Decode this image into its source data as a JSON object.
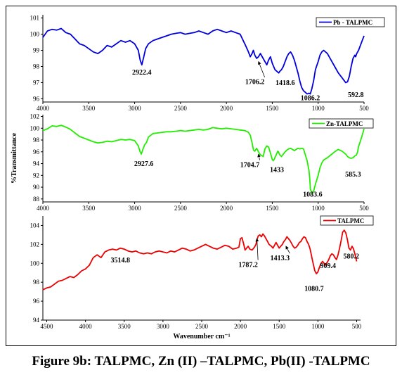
{
  "caption": "Figure 9b: TALPMC, Zn (II) –TALPMC, Pb(II) -TALPMC",
  "chart_data": [
    {
      "type": "line",
      "ylabel": "",
      "xlabel": "",
      "xlim": [
        4000,
        500
      ],
      "ylim": [
        95.8,
        101.2
      ],
      "xticks": [
        "4000",
        "3500",
        "3000",
        "2500",
        "2000",
        "1500",
        "1000",
        "500"
      ],
      "yticks": [
        "101",
        "100",
        "99",
        "98",
        "97",
        "96"
      ],
      "xticks_v": [
        4000,
        3500,
        3000,
        2500,
        2000,
        1500,
        1000,
        500
      ],
      "yticks_v": [
        101,
        100,
        99,
        98,
        97,
        96
      ],
      "legend": "top-right",
      "color": "#0000dd",
      "series": [
        {
          "name": "Pb - TALPMC",
          "x": [
            4000,
            3950,
            3900,
            3850,
            3800,
            3750,
            3700,
            3650,
            3600,
            3550,
            3500,
            3450,
            3400,
            3350,
            3300,
            3250,
            3200,
            3150,
            3100,
            3050,
            3000,
            2960,
            2940,
            2922,
            2900,
            2880,
            2850,
            2800,
            2750,
            2700,
            2650,
            2600,
            2550,
            2500,
            2450,
            2400,
            2350,
            2300,
            2250,
            2200,
            2150,
            2100,
            2050,
            2000,
            1950,
            1900,
            1850,
            1800,
            1760,
            1740,
            1720,
            1706,
            1690,
            1670,
            1650,
            1630,
            1600,
            1580,
            1560,
            1540,
            1520,
            1500,
            1470,
            1450,
            1430,
            1418,
            1400,
            1380,
            1360,
            1340,
            1320,
            1300,
            1280,
            1260,
            1240,
            1220,
            1200,
            1180,
            1160,
            1140,
            1120,
            1100,
            1086,
            1070,
            1050,
            1030,
            1000,
            980,
            960,
            940,
            900,
            860,
            820,
            780,
            740,
            700,
            680,
            660,
            640,
            620,
            600,
            592,
            580,
            560,
            540,
            520,
            500
          ],
          "y": [
            99.8,
            100.2,
            100.3,
            100.25,
            100.35,
            100.1,
            100.0,
            99.7,
            99.4,
            99.3,
            99.1,
            98.9,
            98.8,
            99.0,
            99.3,
            99.2,
            99.4,
            99.6,
            99.5,
            99.6,
            99.4,
            99.0,
            98.4,
            98.1,
            98.6,
            99.1,
            99.4,
            99.6,
            99.7,
            99.8,
            99.9,
            100.0,
            100.05,
            100.1,
            100.0,
            100.05,
            100.1,
            100.2,
            100.1,
            100.0,
            100.2,
            100.3,
            100.2,
            100.1,
            100.2,
            100.1,
            100.0,
            99.4,
            98.9,
            98.6,
            98.8,
            99.0,
            98.7,
            98.5,
            98.6,
            98.8,
            98.5,
            98.3,
            98.1,
            98.4,
            98.6,
            98.2,
            97.8,
            97.7,
            97.6,
            97.7,
            97.8,
            98.0,
            98.3,
            98.6,
            98.8,
            98.9,
            98.7,
            98.4,
            98.0,
            97.6,
            97.1,
            96.7,
            96.5,
            96.4,
            96.3,
            96.35,
            96.3,
            96.6,
            97.1,
            97.8,
            98.3,
            98.7,
            98.9,
            99.0,
            98.8,
            98.4,
            98.0,
            97.6,
            97.3,
            97.0,
            97.05,
            97.4,
            98.0,
            98.5,
            98.7,
            98.6,
            98.8,
            99.0,
            99.3,
            99.6,
            99.9
          ]
        }
      ],
      "annotations": [
        {
          "text": "2922.4",
          "x": 2922,
          "y": 97.5
        },
        {
          "text": "1706.2",
          "x": 1690,
          "y": 96.9,
          "arrow_to": [
            1650,
            98.3
          ],
          "arrow": true
        },
        {
          "text": "1418.6",
          "x": 1360,
          "y": 96.85
        },
        {
          "text": "1086.2",
          "x": 1086,
          "y": 95.9
        },
        {
          "text": "592.8",
          "x": 590,
          "y": 96.1
        }
      ]
    },
    {
      "type": "line",
      "ylabel": "%Transmittance",
      "xlabel": "",
      "xlim": [
        4000,
        500
      ],
      "ylim": [
        87.5,
        102.3
      ],
      "xticks": [
        "4000",
        "3500",
        "3000",
        "2500",
        "2000",
        "1500",
        "1000",
        "500"
      ],
      "yticks": [
        "102",
        "100",
        "98",
        "96",
        "94",
        "92",
        "90",
        "88"
      ],
      "xticks_v": [
        4000,
        3500,
        3000,
        2500,
        2000,
        1500,
        1000,
        500
      ],
      "yticks_v": [
        102,
        100,
        98,
        96,
        94,
        92,
        90,
        88
      ],
      "legend": "top-right",
      "color": "#22ee00",
      "series": [
        {
          "name": "Zn-TALPMC",
          "x": [
            4000,
            3950,
            3900,
            3850,
            3800,
            3750,
            3700,
            3650,
            3600,
            3550,
            3500,
            3450,
            3400,
            3350,
            3300,
            3250,
            3200,
            3150,
            3100,
            3050,
            3000,
            2960,
            2940,
            2927,
            2910,
            2890,
            2870,
            2850,
            2800,
            2750,
            2700,
            2650,
            2600,
            2550,
            2500,
            2450,
            2400,
            2350,
            2300,
            2250,
            2200,
            2150,
            2100,
            2050,
            2000,
            1950,
            1900,
            1850,
            1800,
            1760,
            1740,
            1720,
            1705,
            1690,
            1670,
            1650,
            1630,
            1610,
            1600,
            1590,
            1580,
            1560,
            1540,
            1520,
            1500,
            1490,
            1480,
            1460,
            1440,
            1433,
            1420,
            1400,
            1380,
            1360,
            1340,
            1320,
            1300,
            1280,
            1260,
            1240,
            1220,
            1200,
            1180,
            1160,
            1140,
            1120,
            1100,
            1090,
            1084,
            1070,
            1050,
            1030,
            1000,
            980,
            960,
            940,
            900,
            860,
            820,
            780,
            740,
            700,
            680,
            660,
            640,
            620,
            600,
            585,
            570,
            560,
            540,
            520,
            500
          ],
          "y": [
            99.6,
            99.9,
            100.4,
            100.3,
            100.5,
            100.2,
            99.8,
            99.2,
            98.6,
            98.3,
            98.0,
            97.7,
            97.5,
            97.6,
            97.8,
            97.7,
            97.9,
            98.1,
            98.0,
            98.1,
            97.9,
            97.0,
            96.0,
            95.6,
            96.4,
            97.2,
            97.6,
            98.5,
            99.1,
            99.2,
            99.3,
            99.4,
            99.4,
            99.5,
            99.6,
            99.5,
            99.6,
            99.7,
            99.8,
            99.7,
            99.8,
            100.1,
            100.0,
            99.9,
            100.0,
            99.9,
            99.8,
            99.7,
            99.6,
            99.3,
            98.8,
            97.5,
            96.3,
            96.1,
            96.6,
            96.0,
            95.5,
            95.3,
            95.2,
            95.8,
            96.5,
            97.0,
            96.8,
            95.8,
            94.7,
            94.5,
            94.7,
            95.4,
            96.1,
            96.0,
            95.5,
            95.2,
            95.6,
            96.0,
            96.3,
            96.5,
            96.6,
            96.4,
            96.2,
            96.4,
            96.6,
            96.5,
            96.6,
            96.5,
            95.5,
            94.5,
            92.8,
            91.0,
            89.6,
            89.1,
            89.3,
            90.5,
            92.0,
            93.3,
            94.1,
            94.6,
            95.0,
            95.5,
            96.0,
            96.4,
            96.1,
            95.6,
            95.2,
            95.0,
            94.9,
            95.0,
            95.3,
            95.4,
            96.0,
            96.9,
            97.8,
            98.8,
            99.9
          ]
        }
      ],
      "annotations": [
        {
          "text": "2927.6",
          "x": 2900,
          "y": 93.6
        },
        {
          "text": "1704.7",
          "x": 1745,
          "y": 93.4,
          "arrow_to": [
            1650,
            95.6
          ],
          "arrow": true
        },
        {
          "text": "1433",
          "x": 1450,
          "y": 92.6
        },
        {
          "text": "1083.6",
          "x": 1060,
          "y": 88.4
        },
        {
          "text": "585.3",
          "x": 620,
          "y": 91.8
        }
      ]
    },
    {
      "type": "line",
      "ylabel": "",
      "xlabel": "Wavenumber cm⁻¹",
      "xlim": [
        4550,
        450
      ],
      "ylim": [
        94,
        105
      ],
      "xticks": [
        "4500",
        "4000",
        "3500",
        "3000",
        "2500",
        "2000",
        "1500",
        "1000",
        "500"
      ],
      "yticks": [
        "104",
        "102",
        "100",
        "98",
        "96",
        "94"
      ],
      "xticks_v": [
        4500,
        4000,
        3500,
        3000,
        2500,
        2000,
        1500,
        1000,
        500
      ],
      "yticks_v": [
        104,
        102,
        100,
        98,
        96,
        94
      ],
      "legend": "top-right",
      "color": "#ee0000",
      "series": [
        {
          "name": "TALPMC",
          "x": [
            4550,
            4500,
            4450,
            4400,
            4350,
            4300,
            4250,
            4200,
            4150,
            4100,
            4050,
            4000,
            3950,
            3900,
            3850,
            3800,
            3750,
            3700,
            3650,
            3600,
            3550,
            3500,
            3450,
            3400,
            3350,
            3300,
            3250,
            3200,
            3150,
            3100,
            3050,
            3000,
            2950,
            2900,
            2850,
            2800,
            2750,
            2700,
            2650,
            2600,
            2550,
            2500,
            2450,
            2400,
            2350,
            2300,
            2250,
            2200,
            2150,
            2100,
            2050,
            2020,
            2000,
            1980,
            1960,
            1940,
            1920,
            1900,
            1880,
            1850,
            1820,
            1800,
            1787,
            1770,
            1750,
            1730,
            1710,
            1690,
            1670,
            1650,
            1630,
            1600,
            1580,
            1560,
            1540,
            1520,
            1500,
            1480,
            1460,
            1440,
            1420,
            1400,
            1380,
            1360,
            1340,
            1320,
            1300,
            1280,
            1260,
            1240,
            1220,
            1200,
            1180,
            1160,
            1140,
            1120,
            1100,
            1080,
            1060,
            1040,
            1020,
            1000,
            980,
            960,
            940,
            920,
            909,
            900,
            880,
            860,
            840,
            820,
            800,
            780,
            760,
            740,
            720,
            700,
            680,
            660,
            640,
            620,
            600,
            580,
            570,
            560,
            540,
            520,
            500
          ],
          "y": [
            97.2,
            97.4,
            97.5,
            97.8,
            98.1,
            98.2,
            98.4,
            98.6,
            98.5,
            98.8,
            99.2,
            99.4,
            99.8,
            100.6,
            100.9,
            100.6,
            101.2,
            101.4,
            101.5,
            101.4,
            101.6,
            101.5,
            101.3,
            101.2,
            101.3,
            101.1,
            101.0,
            101.1,
            101.0,
            101.2,
            101.3,
            101.2,
            101.1,
            101.3,
            101.2,
            101.4,
            101.6,
            101.5,
            101.3,
            101.4,
            101.6,
            101.8,
            102.0,
            101.8,
            101.6,
            101.5,
            101.7,
            101.9,
            101.8,
            101.5,
            101.6,
            101.7,
            102.6,
            102.7,
            102.1,
            101.4,
            101.6,
            101.8,
            101.5,
            101.4,
            101.7,
            102.0,
            102.5,
            102.9,
            103.0,
            102.8,
            103.1,
            102.9,
            102.6,
            102.3,
            102.0,
            101.8,
            101.6,
            101.9,
            102.2,
            101.9,
            101.6,
            101.8,
            102.0,
            102.3,
            102.5,
            102.8,
            102.6,
            102.4,
            102.1,
            101.8,
            101.6,
            101.7,
            101.9,
            102.2,
            102.3,
            102.6,
            102.8,
            102.7,
            102.3,
            102.0,
            101.5,
            100.7,
            99.9,
            99.2,
            98.9,
            99.1,
            99.6,
            100.0,
            100.2,
            100.0,
            99.8,
            99.9,
            100.1,
            100.4,
            100.8,
            101.0,
            100.9,
            100.6,
            100.4,
            100.9,
            101.6,
            102.4,
            103.3,
            103.5,
            103.2,
            102.5,
            101.6,
            101.4,
            101.6,
            101.8,
            101.5,
            100.9,
            100.2
          ]
        }
      ],
      "annotations": [
        {
          "text": "3514.8",
          "x": 3550,
          "y": 100.1
        },
        {
          "text": "1787.2",
          "x": 1900,
          "y": 99.6,
          "arrow_to": [
            1787,
            102.6
          ],
          "arrow": true
        },
        {
          "text": "1413.3",
          "x": 1490,
          "y": 100.3,
          "arrow_to": [
            1413,
            101.8
          ],
          "arrow": true
        },
        {
          "text": "909.4",
          "x": 870,
          "y": 99.5
        },
        {
          "text": "1080.7",
          "x": 1050,
          "y": 97.1
        },
        {
          "text": "580.2",
          "x": 570,
          "y": 100.5
        }
      ]
    }
  ]
}
